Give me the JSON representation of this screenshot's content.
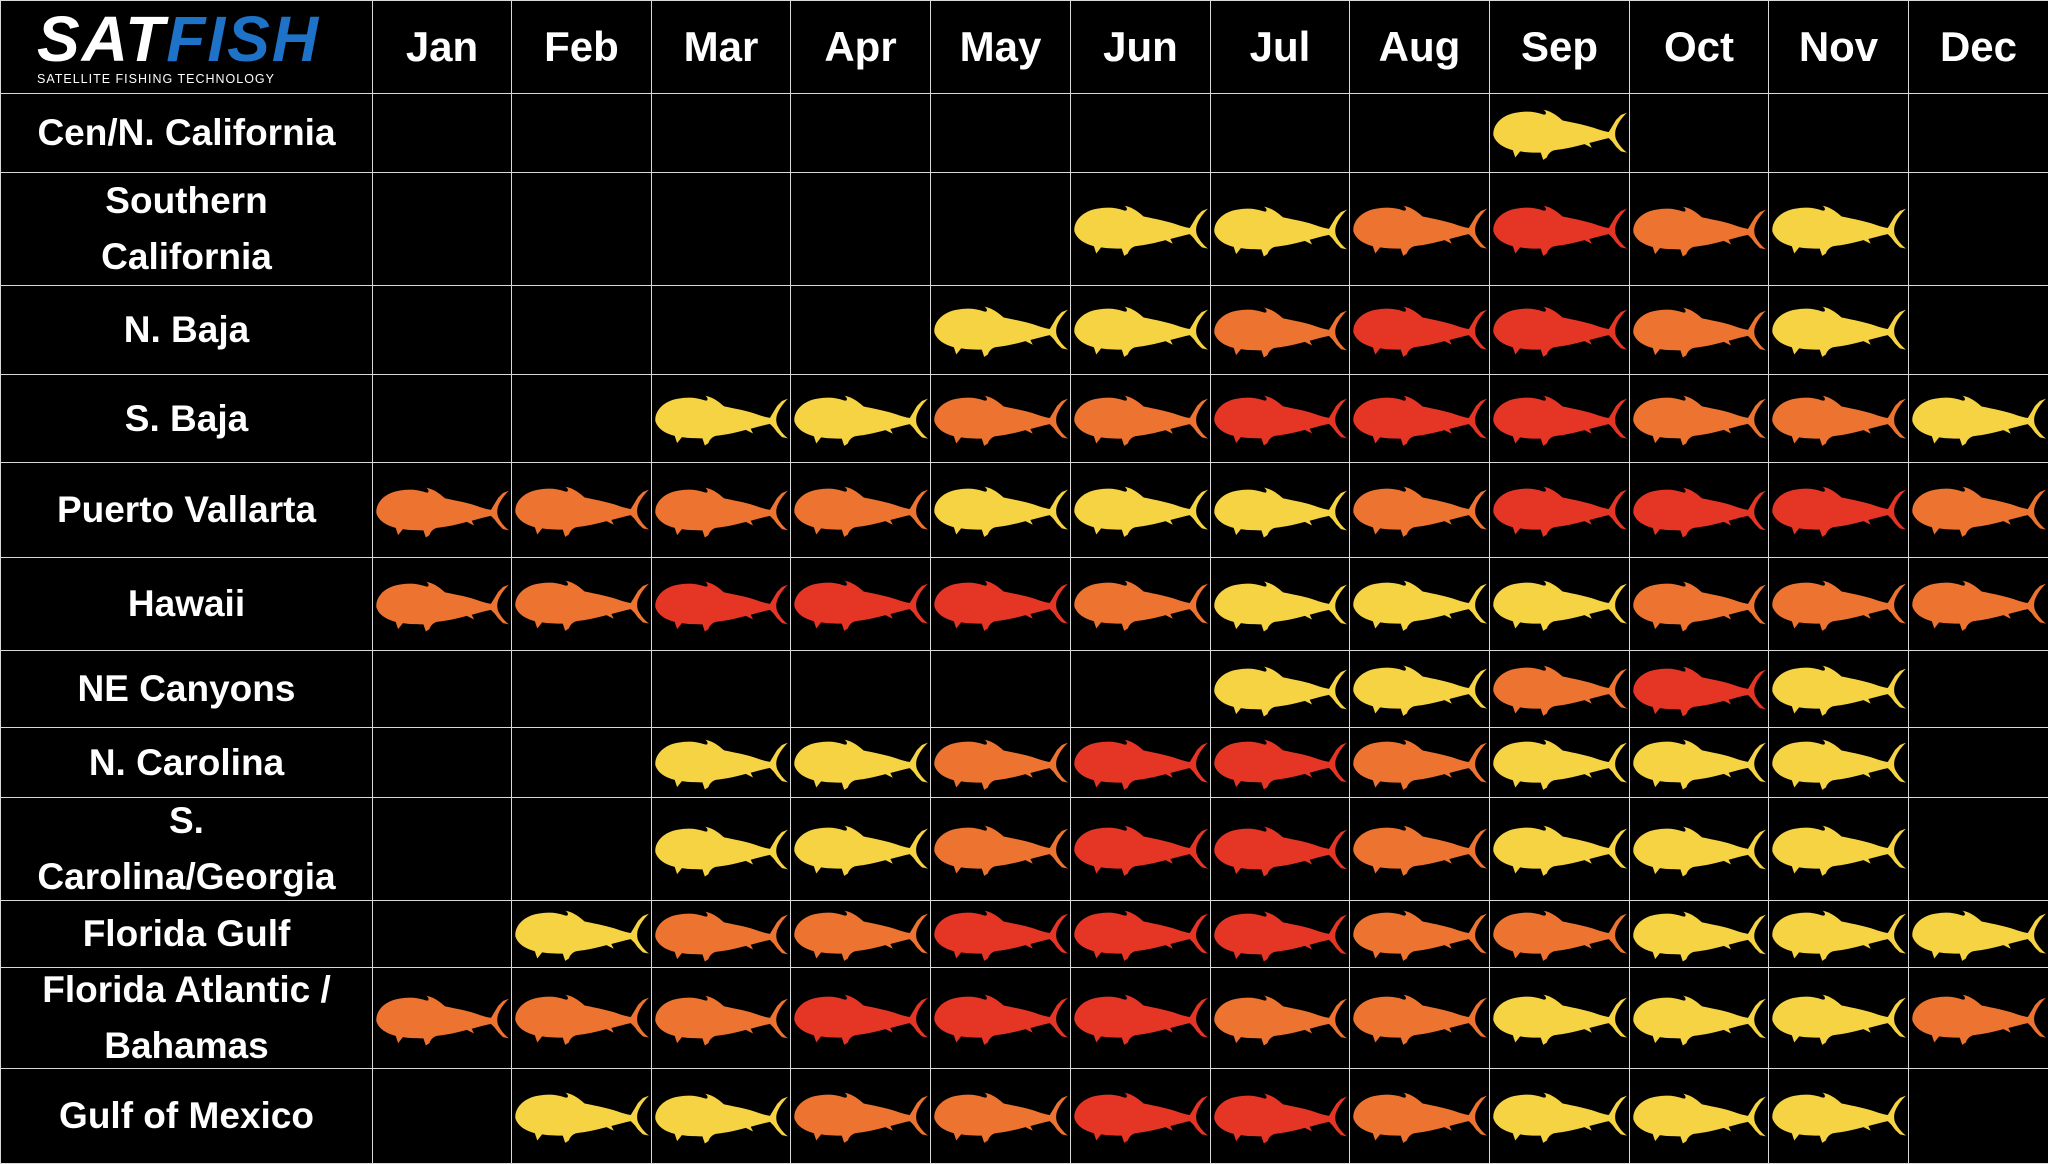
{
  "logo": {
    "text_sat": "SAT",
    "text_fish": "FISH",
    "tagline": "SATELLITE FISHING TECHNOLOGY",
    "colors": {
      "sat": "#ffffff",
      "fish": "#1e73c8"
    }
  },
  "months": [
    "Jan",
    "Feb",
    "Mar",
    "Apr",
    "May",
    "Jun",
    "Jul",
    "Aug",
    "Sep",
    "Oct",
    "Nov",
    "Dec"
  ],
  "levels": {
    "0": null,
    "1": "#f6d343",
    "2": "#ed7330",
    "3": "#e43525"
  },
  "chart_data": {
    "type": "heatmap",
    "title": "",
    "x": [
      "Jan",
      "Feb",
      "Mar",
      "Apr",
      "May",
      "Jun",
      "Jul",
      "Aug",
      "Sep",
      "Oct",
      "Nov",
      "Dec"
    ],
    "y": [
      "Cen/N. California",
      "Southern California",
      "N. Baja",
      "S. Baja",
      "Puerto Vallarta",
      "Hawaii",
      "NE Canyons",
      "N. Carolina",
      "S. Carolina/Georgia",
      "Florida Gulf",
      "Florida Atlantic / Bahamas",
      "Gulf of Mexico"
    ],
    "y_display": [
      "Cen/N. California",
      "Southern\nCalifornia",
      "N. Baja",
      "S. Baja",
      "Puerto Vallarta",
      "Hawaii",
      "NE Canyons",
      "N. Carolina",
      "S.\nCarolina/Georgia",
      "Florida Gulf",
      "Florida Atlantic /\nBahamas",
      "Gulf of Mexico"
    ],
    "color_scale": {
      "0": "none",
      "1": "yellow",
      "2": "orange",
      "3": "red"
    },
    "values": [
      [
        0,
        0,
        0,
        0,
        0,
        0,
        0,
        0,
        1,
        0,
        0,
        0
      ],
      [
        0,
        0,
        0,
        0,
        0,
        1,
        1,
        2,
        3,
        2,
        1,
        0
      ],
      [
        0,
        0,
        0,
        0,
        1,
        1,
        2,
        3,
        3,
        2,
        1,
        0
      ],
      [
        0,
        0,
        1,
        1,
        2,
        2,
        3,
        3,
        3,
        2,
        2,
        1
      ],
      [
        2,
        2,
        2,
        2,
        1,
        1,
        1,
        2,
        3,
        3,
        3,
        2
      ],
      [
        2,
        2,
        3,
        3,
        3,
        2,
        1,
        1,
        1,
        2,
        2,
        2
      ],
      [
        0,
        0,
        0,
        0,
        0,
        0,
        1,
        1,
        2,
        3,
        1,
        0
      ],
      [
        0,
        0,
        1,
        1,
        2,
        3,
        3,
        2,
        1,
        1,
        1,
        0
      ],
      [
        0,
        0,
        1,
        1,
        2,
        3,
        3,
        2,
        1,
        1,
        1,
        0
      ],
      [
        0,
        1,
        2,
        2,
        3,
        3,
        3,
        2,
        2,
        1,
        1,
        1
      ],
      [
        2,
        2,
        2,
        3,
        3,
        3,
        2,
        2,
        1,
        1,
        1,
        2
      ],
      [
        0,
        1,
        1,
        2,
        2,
        3,
        3,
        2,
        1,
        1,
        1,
        0
      ]
    ]
  }
}
